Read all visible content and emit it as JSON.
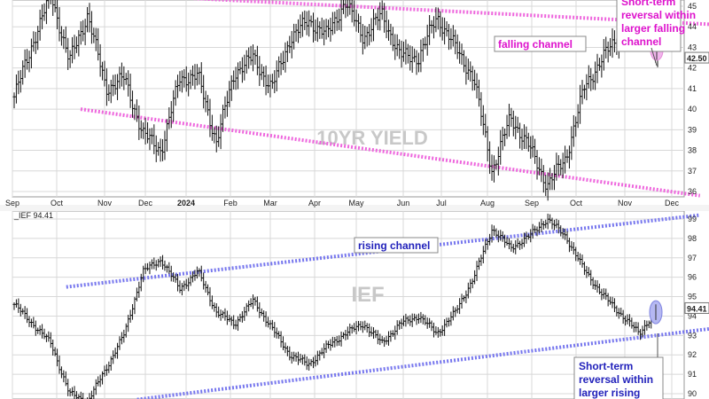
{
  "chart_data": [
    {
      "type": "ohlc",
      "watermark": "10YR YIELD",
      "x_ticks": [
        "Sep",
        "Oct",
        "Nov",
        "Dec",
        "2024",
        "Feb",
        "Mar",
        "Apr",
        "May",
        "Jun",
        "Jul",
        "Aug",
        "Sep",
        "Oct",
        "Nov",
        "Dec"
      ],
      "y_ticks": [
        36,
        37,
        38,
        39,
        40,
        41,
        42,
        43,
        44,
        45
      ],
      "ylim": [
        35.5,
        45.6
      ],
      "last_value_label": "42.50",
      "last_value": 42.5,
      "trendlines": [
        {
          "name": "upper",
          "from": [
            -0.7,
            45.9
          ],
          "to": [
            16.0,
            44.1
          ]
        },
        {
          "name": "lower",
          "from": [
            1.5,
            40.0
          ],
          "to": [
            15.6,
            35.8
          ]
        }
      ],
      "key_prices": [
        [
          0,
          40.6
        ],
        [
          1,
          43.2
        ],
        [
          2,
          45.6
        ],
        [
          3,
          42.3
        ],
        [
          4,
          44.6
        ],
        [
          5,
          41.0
        ],
        [
          6,
          41.5
        ],
        [
          7,
          38.8
        ],
        [
          8,
          38.0
        ],
        [
          9,
          41.5
        ],
        [
          10,
          41.6
        ],
        [
          11,
          38.4
        ],
        [
          12,
          41.8
        ],
        [
          13,
          42.5
        ],
        [
          14,
          41.0
        ],
        [
          15,
          43.4
        ],
        [
          16,
          44.3
        ],
        [
          17,
          43.6
        ],
        [
          18,
          45.2
        ],
        [
          19,
          43.5
        ],
        [
          20,
          44.6
        ],
        [
          21,
          42.6
        ],
        [
          22,
          42.5
        ],
        [
          23,
          44.5
        ],
        [
          24,
          43.0
        ],
        [
          25,
          41.5
        ],
        [
          26,
          37.0
        ],
        [
          27,
          39.6
        ],
        [
          28,
          38.2
        ],
        [
          29,
          36.3
        ],
        [
          30,
          37.6
        ],
        [
          31,
          41.0
        ],
        [
          32,
          42.5
        ],
        [
          33,
          43.6
        ],
        [
          34,
          44.7
        ],
        [
          35,
          42.5
        ]
      ]
    },
    {
      "type": "ohlc",
      "header_label": "_IEF 94.41",
      "watermark": "IEF",
      "y_ticks": [
        90,
        91,
        92,
        93,
        94,
        95,
        96,
        97,
        98,
        99
      ],
      "ylim": [
        89.6,
        99.4
      ],
      "last_value_label": "94.41",
      "last_value": 94.41,
      "trendlines": [
        {
          "name": "upper",
          "from": [
            1.2,
            95.5
          ],
          "to": [
            15.6,
            99.2
          ]
        },
        {
          "name": "lower",
          "from": [
            2.8,
            89.7
          ],
          "to": [
            16.0,
            93.4
          ]
        }
      ],
      "key_prices": [
        [
          0,
          94.6
        ],
        [
          1,
          93.6
        ],
        [
          2,
          92.6
        ],
        [
          3,
          90.0
        ],
        [
          4,
          89.6
        ],
        [
          5,
          91.3
        ],
        [
          6,
          93.1
        ],
        [
          7,
          96.3
        ],
        [
          8,
          96.9
        ],
        [
          9,
          95.4
        ],
        [
          10,
          96.3
        ],
        [
          11,
          94.2
        ],
        [
          12,
          93.6
        ],
        [
          13,
          94.8
        ],
        [
          14,
          93.4
        ],
        [
          15,
          92.0
        ],
        [
          16,
          91.5
        ],
        [
          17,
          92.4
        ],
        [
          18,
          93.1
        ],
        [
          19,
          93.6
        ],
        [
          20,
          92.6
        ],
        [
          21,
          93.6
        ],
        [
          22,
          94.0
        ],
        [
          23,
          93.1
        ],
        [
          24,
          94.2
        ],
        [
          25,
          96.0
        ],
        [
          26,
          98.5
        ],
        [
          27,
          97.5
        ],
        [
          28,
          98.1
        ],
        [
          29,
          99.0
        ],
        [
          30,
          98.1
        ],
        [
          31,
          96.4
        ],
        [
          32,
          95.1
        ],
        [
          33,
          94.1
        ],
        [
          34,
          93.1
        ],
        [
          35,
          94.4
        ]
      ]
    }
  ],
  "annotations": {
    "top_callout": "Short-term reversal within larger falling channel",
    "top_callout_lines": [
      "Short-term",
      "reversal within",
      "larger falling",
      "channel"
    ],
    "falling_channel": "falling channel",
    "rising_channel": "rising channel",
    "bottom_callout": "Short-term reversal within larger rising",
    "bottom_callout_lines": [
      "Short-term",
      "reversal within",
      "larger rising"
    ]
  },
  "colors": {
    "top_channel": "#ee66dd",
    "bottom_channel": "#7777ee",
    "top_label_text": "#dd11cc",
    "bottom_label_text": "#2222bb",
    "watermark": "#c8c8c8",
    "bars": "#111111",
    "grid": "#d8d8d8"
  }
}
